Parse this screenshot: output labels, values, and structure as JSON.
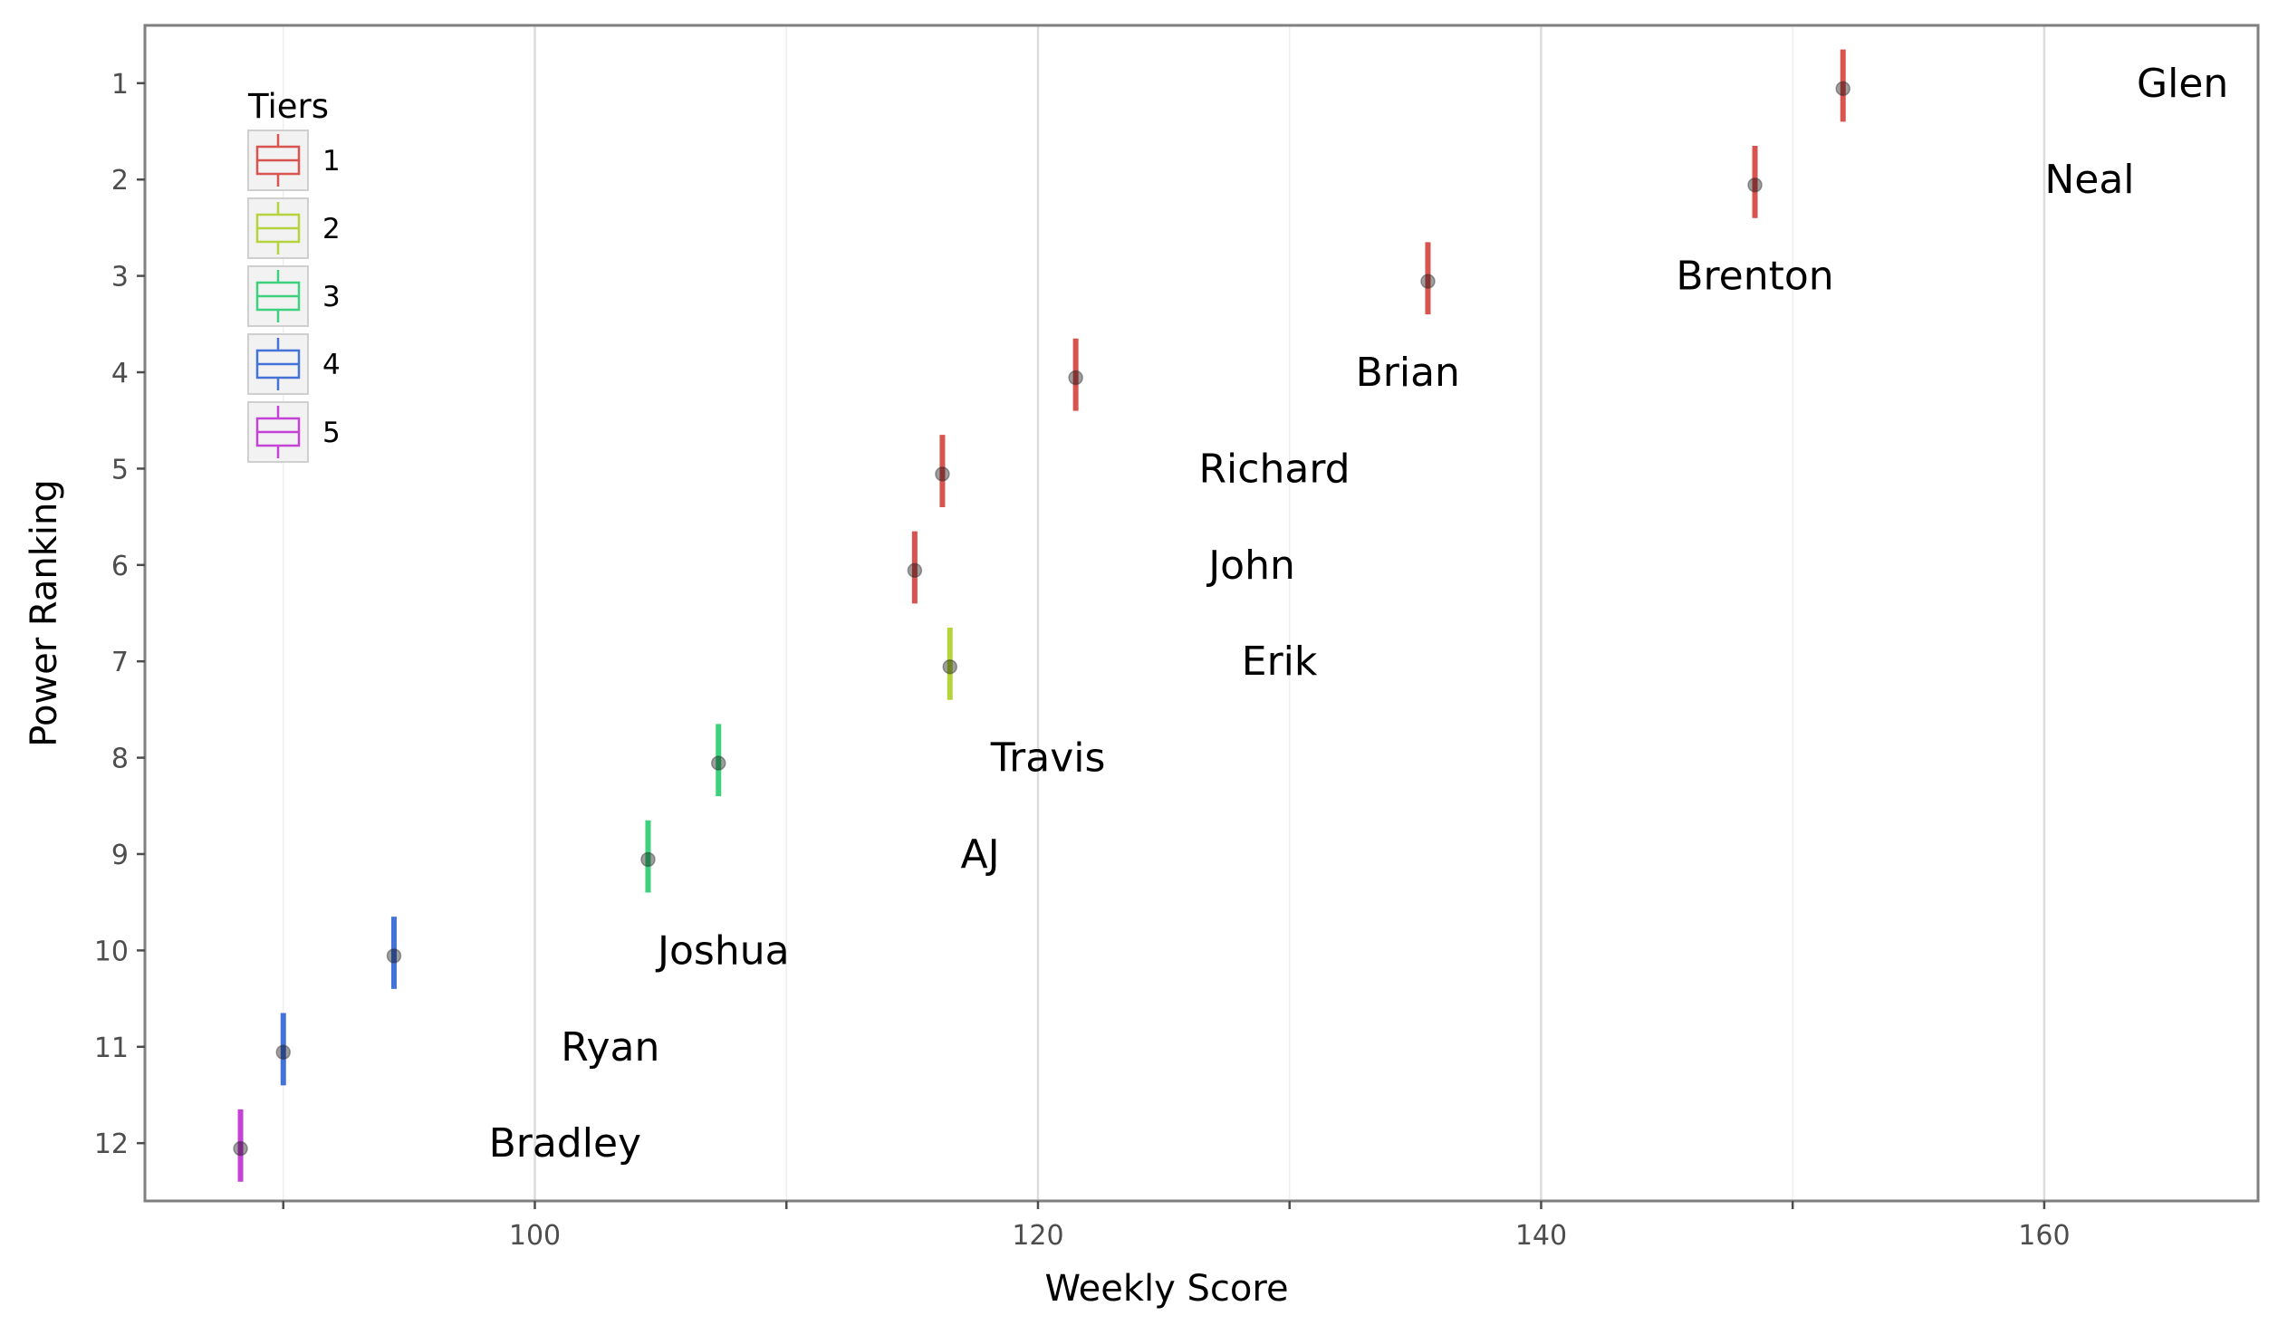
{
  "chart_data": {
    "type": "scatter",
    "xlabel": "Weekly Score",
    "ylabel": "Power Ranking",
    "xlim": [
      84.5,
      168.5
    ],
    "ylim": [
      12.6,
      0.4
    ],
    "x_ticks": [
      100,
      120,
      140,
      160
    ],
    "x_minor_ticks": [
      90,
      110,
      130,
      150
    ],
    "y_ticks": [
      1,
      2,
      3,
      4,
      5,
      6,
      7,
      8,
      9,
      10,
      11,
      12
    ],
    "grid": true,
    "legend": {
      "title": "Tiers",
      "placement": "top-left",
      "entries": [
        {
          "label": "1",
          "color": "#d9534f"
        },
        {
          "label": "2",
          "color": "#b5d33d"
        },
        {
          "label": "3",
          "color": "#3dd17e"
        },
        {
          "label": "4",
          "color": "#4472d6"
        },
        {
          "label": "5",
          "color": "#c542d6"
        }
      ]
    },
    "points": [
      {
        "name": "Glen",
        "rank": 1,
        "score": 152.0,
        "tier": "1",
        "range": [
          0.65,
          1.4
        ],
        "label_x": 165.5
      },
      {
        "name": "Neal",
        "rank": 2,
        "score": 148.5,
        "tier": "1",
        "range": [
          1.65,
          2.4
        ],
        "label_x": 161.8
      },
      {
        "name": "Brenton",
        "rank": 3,
        "score": 135.5,
        "tier": "1",
        "range": [
          2.65,
          3.4
        ],
        "label_x": 148.5
      },
      {
        "name": "Brian",
        "rank": 4,
        "score": 121.5,
        "tier": "1",
        "range": [
          3.65,
          4.4
        ],
        "label_x": 134.7
      },
      {
        "name": "Richard",
        "rank": 5,
        "score": 116.2,
        "tier": "1",
        "range": [
          4.65,
          5.4
        ],
        "label_x": 129.4
      },
      {
        "name": "John",
        "rank": 6,
        "score": 115.1,
        "tier": "1",
        "range": [
          5.65,
          6.4
        ],
        "label_x": 128.5
      },
      {
        "name": "Erik",
        "rank": 7,
        "score": 116.5,
        "tier": "2",
        "range": [
          6.65,
          7.4
        ],
        "label_x": 129.6
      },
      {
        "name": "Travis",
        "rank": 8,
        "score": 107.3,
        "tier": "3",
        "range": [
          7.65,
          8.4
        ],
        "label_x": 120.4
      },
      {
        "name": "AJ",
        "rank": 9,
        "score": 104.5,
        "tier": "3",
        "range": [
          8.65,
          9.4
        ],
        "label_x": 117.7
      },
      {
        "name": "Joshua",
        "rank": 10,
        "score": 94.4,
        "tier": "4",
        "range": [
          9.65,
          10.4
        ],
        "label_x": 107.5
      },
      {
        "name": "Ryan",
        "rank": 11,
        "score": 90.0,
        "tier": "4",
        "range": [
          10.65,
          11.4
        ],
        "label_x": 103.0
      },
      {
        "name": "Bradley",
        "rank": 12,
        "score": 88.3,
        "tier": "5",
        "range": [
          11.65,
          12.4
        ],
        "label_x": 101.2
      }
    ]
  }
}
